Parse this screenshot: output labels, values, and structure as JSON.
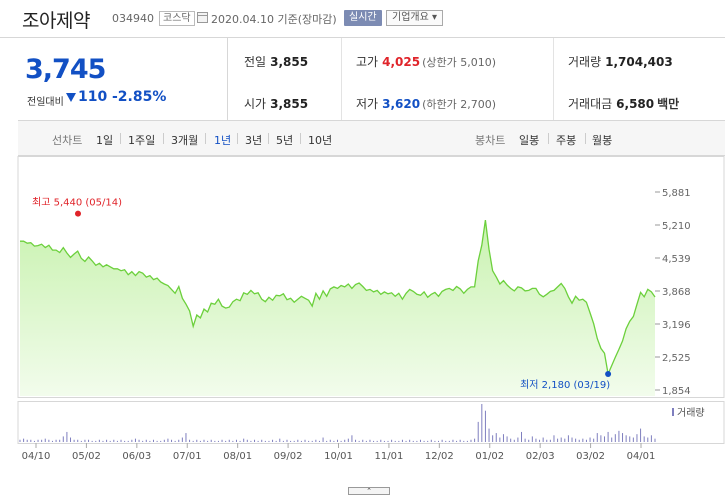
{
  "header": {
    "stock_name": "조아제약",
    "stock_code": "034940",
    "market": "코스닥",
    "date_text": "2020.04.10  기준(장마감)",
    "realtime_btn": "실시간",
    "company_btn": "기업개요 ▾"
  },
  "price": {
    "current": "3,745",
    "change_label": "전일대비",
    "change_value": "110",
    "change_pct": "-2.85%"
  },
  "stats": {
    "prev_label": "전일",
    "prev_value": "3,855",
    "high_label": "고가",
    "high_value": "4,025",
    "high_sub": "(상한가 5,010)",
    "volume_label": "거래량",
    "volume_value": "1,704,403",
    "open_label": "시가",
    "open_value": "3,855",
    "low_label": "저가",
    "low_value": "3,620",
    "low_sub": "(하한가 2,700)",
    "amount_label": "거래대금",
    "amount_value": "6,580",
    "amount_unit": "백만"
  },
  "toolbar": {
    "line_label": "선차트",
    "periods": [
      "1일",
      "1주일",
      "3개월",
      "1년",
      "3년",
      "5년",
      "10년"
    ],
    "active_period": "1년",
    "candle_label": "봉차트",
    "candles": [
      "일봉",
      "주봉",
      "월봉"
    ]
  },
  "chart_data": {
    "type": "area",
    "x_tick_labels": [
      "04/10",
      "05/02",
      "06/03",
      "07/01",
      "08/01",
      "09/02",
      "10/01",
      "11/01",
      "12/02",
      "01/02",
      "02/03",
      "03/02",
      "04/01"
    ],
    "y_tick_labels": [
      "5,881",
      "5,210",
      "4,539",
      "3,868",
      "3,196",
      "2,525",
      "1,854"
    ],
    "ylim": [
      1854,
      5881
    ],
    "high_annotation": "최고 5,440 (05/14)",
    "low_annotation": "최저 2,180 (03/19)",
    "high": {
      "date": "05/14",
      "value": 5440
    },
    "low": {
      "date": "03/19",
      "value": 2180
    },
    "volume_legend": "거래량",
    "series": [
      {
        "values": [
          4880,
          4880,
          4840,
          4850,
          4780,
          4790,
          4820,
          4750,
          4800,
          4700,
          4700,
          4650,
          4750,
          4640,
          4550,
          4620,
          4680,
          4530,
          4470,
          4560,
          4480,
          4390,
          4430,
          4360,
          4400,
          4360,
          4320,
          4320,
          4280,
          4300,
          4200,
          4260,
          4180,
          4260,
          4230,
          4150,
          4180,
          4100,
          4130,
          4050,
          4010,
          3980,
          3900,
          3820,
          3960,
          3720,
          3600,
          3460,
          3150,
          3380,
          3320,
          3500,
          3440,
          3620,
          3600,
          3700,
          3560,
          3520,
          3540,
          3650,
          3700,
          3670,
          3830,
          3800,
          3880,
          3810,
          3830,
          3700,
          3650,
          3740,
          3680,
          3780,
          3770,
          3810,
          3690,
          3720,
          3640,
          3700,
          3760,
          3720,
          3680,
          3560,
          3820,
          3700,
          3870,
          3760,
          3910,
          3950,
          3920,
          3980,
          3950,
          4010,
          3920,
          4000,
          4030,
          3960,
          3880,
          3900,
          3850,
          3880,
          3800,
          3850,
          3810,
          3830,
          3760,
          3820,
          3700,
          3820,
          3900,
          3860,
          3800,
          3780,
          3850,
          3740,
          3800,
          3840,
          3760,
          3860,
          3900,
          3920,
          3880,
          3960,
          3910,
          3820,
          3900,
          3950,
          3950,
          4480,
          4800,
          5310,
          4720,
          4280,
          4150,
          4010,
          4080,
          3990,
          3920,
          3870,
          3950,
          3930,
          3870,
          3880,
          3920,
          3920,
          3800,
          3750,
          3800,
          3860,
          3880,
          3950,
          4020,
          3920,
          3750,
          3620,
          3760,
          3680,
          3700,
          3640,
          3420,
          3200,
          2900,
          2700,
          2600,
          2180,
          2350,
          2520,
          2680,
          2850,
          3100,
          3250,
          3350,
          3600,
          3840,
          3750,
          3900,
          3850,
          3745
        ]
      }
    ],
    "volume": [
      2,
      3,
      2,
      2,
      1,
      2,
      2,
      3,
      2,
      1,
      2,
      2,
      5,
      9,
      4,
      2,
      2,
      1,
      2,
      2,
      1,
      1,
      2,
      1,
      2,
      1,
      2,
      1,
      2,
      1,
      1,
      2,
      3,
      2,
      1,
      2,
      1,
      2,
      1,
      1,
      2,
      3,
      2,
      1,
      2,
      4,
      8,
      2,
      1,
      2,
      1,
      2,
      1,
      2,
      1,
      1,
      2,
      1,
      2,
      1,
      2,
      1,
      3,
      2,
      1,
      2,
      1,
      2,
      1,
      1,
      2,
      1,
      3,
      1,
      2,
      1,
      1,
      2,
      1,
      2,
      1,
      1,
      2,
      1,
      4,
      1,
      2,
      1,
      2,
      1,
      2,
      3,
      6,
      2,
      1,
      2,
      1,
      2,
      1,
      1,
      2,
      1,
      1,
      2,
      1,
      1,
      2,
      1,
      2,
      1,
      1,
      2,
      1,
      1,
      2,
      1,
      1,
      2,
      1,
      1,
      2,
      1,
      2,
      1,
      1,
      2,
      3,
      18,
      34,
      28,
      12,
      6,
      8,
      4,
      7,
      5,
      3,
      2,
      4,
      9,
      3,
      2,
      5,
      3,
      2,
      4,
      2,
      2,
      6,
      3,
      4,
      3,
      6,
      4,
      3,
      2,
      3,
      2,
      4,
      3,
      8,
      6,
      5,
      9,
      4,
      7,
      10,
      8,
      6,
      5,
      4,
      7,
      12,
      5,
      4,
      6,
      3
    ]
  },
  "scroll_handle": "⌃"
}
